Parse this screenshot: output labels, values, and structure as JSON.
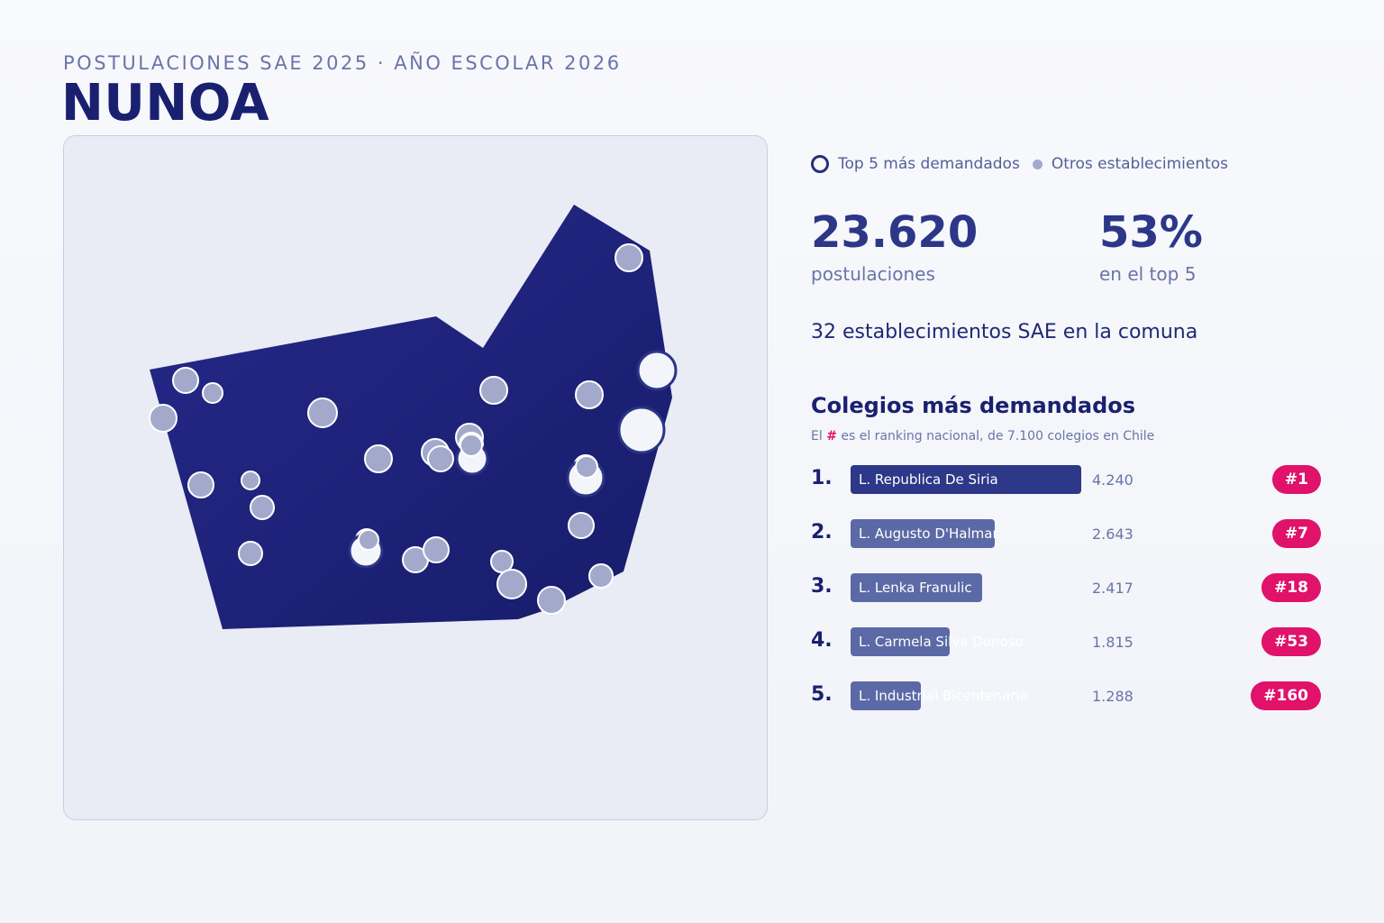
{
  "header": {
    "eyebrow": "POSTULACIONES SAE 2025 · AÑO ESCOLAR 2026",
    "title": "NUNOA"
  },
  "legend": {
    "top5": "Top 5 más demandados",
    "others": "Otros establecimientos"
  },
  "stats": {
    "applications_value": "23.620",
    "applications_label": "postulaciones",
    "top5_share_value": "53%",
    "top5_share_label": "en el top 5"
  },
  "establishments_line": "32 establecimientos SAE en la comuna",
  "ranking": {
    "title": "Colegios más demandados",
    "note_prefix": "El ",
    "note_hash": "#",
    "note_suffix": " es el ranking nacional, de 7.100 colegios en Chile",
    "items": [
      {
        "rank": "1.",
        "name": "L. Republica De Siria",
        "applications": 4240,
        "value_label": "4.240",
        "national_rank": "#1"
      },
      {
        "rank": "2.",
        "name": "L. Augusto D'Halmar",
        "applications": 2643,
        "value_label": "2.643",
        "national_rank": "#7"
      },
      {
        "rank": "3.",
        "name": "L. Lenka Franulic",
        "applications": 2417,
        "value_label": "2.417",
        "national_rank": "#18"
      },
      {
        "rank": "4.",
        "name": "L. Carmela Silva Donoso",
        "applications": 1815,
        "value_label": "1.815",
        "national_rank": "#53"
      },
      {
        "rank": "5.",
        "name": "L. Industrial Bicentenario",
        "applications": 1288,
        "value_label": "1.288",
        "national_rank": "#160"
      }
    ]
  },
  "colors": {
    "commune_fill": "#1e2478",
    "top5_fill": "#f4f5fb",
    "top5_ring": "#2a3585",
    "others_fill": "#a3a9cb",
    "badge": "#e0126a",
    "bar_top": "#2d3889",
    "bar_rest": "#5b6aa6"
  }
}
